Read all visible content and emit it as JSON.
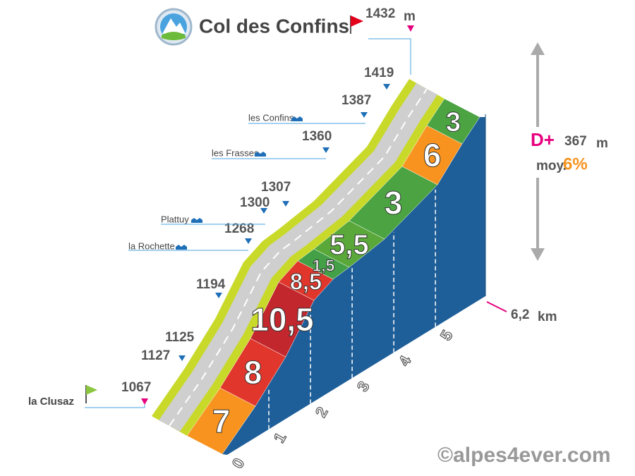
{
  "title": "Col des Confins",
  "summit": {
    "altitude": "1432",
    "unit": "m"
  },
  "start": {
    "name": "la Clusaz",
    "altitude": "1067"
  },
  "markers": [
    {
      "altitude": "1127"
    },
    {
      "altitude": "1125"
    },
    {
      "altitude": "1194"
    },
    {
      "altitude": "1268",
      "place": "la Rochette"
    },
    {
      "altitude": "1300",
      "place": "Plattuy"
    },
    {
      "altitude": "1307"
    },
    {
      "altitude": "1360",
      "place": "les Frasses"
    },
    {
      "altitude": "1387",
      "place": "les Confins"
    },
    {
      "altitude": "1419"
    }
  ],
  "gradients": [
    "7",
    "8",
    "10,5",
    "8,5",
    "1,5",
    "5,5",
    "3",
    "6",
    "3"
  ],
  "km_ticks": [
    "0",
    "1",
    "2",
    "3",
    "4",
    "5"
  ],
  "distance": {
    "value": "6,2",
    "unit": "km"
  },
  "gain": {
    "label": "D+",
    "value": "367",
    "unit": "m"
  },
  "average": {
    "label": "moy.",
    "value": "6%"
  },
  "copyright": "©alpes4ever.com"
}
